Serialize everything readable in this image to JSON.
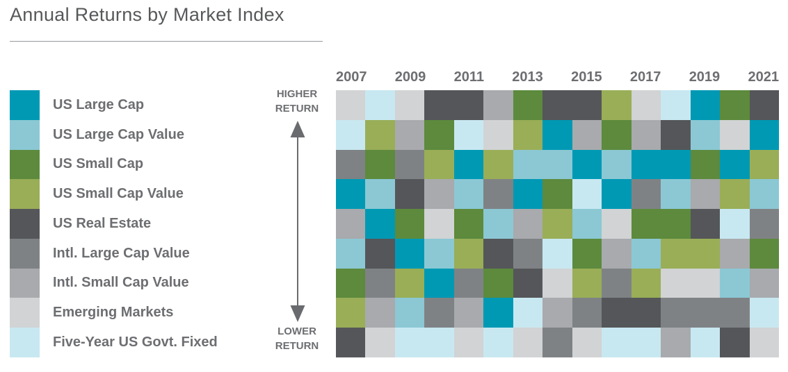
{
  "title": "Annual Returns by Market Index",
  "axis": {
    "higher": "HIGHER RETURN",
    "lower": "LOWER RETURN"
  },
  "colors": {
    "us_large_cap": "#0099B4",
    "us_large_cap_value": "#8BC8D4",
    "us_small_cap": "#5D8A3D",
    "us_small_cap_value": "#99AE57",
    "us_real_estate": "#555659",
    "intl_large_cap_value": "#7F8285",
    "intl_small_cap_value": "#A8AAAD",
    "emerging_markets": "#D1D3D4",
    "five_year_govt": "#C8E8F1",
    "text_title": "#57585A",
    "text_labels": "#6D6E71",
    "arrow": "#6A6B6E"
  },
  "legend": {
    "items": [
      {
        "key": "us_large_cap",
        "label": "US Large Cap"
      },
      {
        "key": "us_large_cap_value",
        "label": "US Large Cap Value"
      },
      {
        "key": "us_small_cap",
        "label": "US Small Cap"
      },
      {
        "key": "us_small_cap_value",
        "label": "US Small Cap Value"
      },
      {
        "key": "us_real_estate",
        "label": "US Real Estate"
      },
      {
        "key": "intl_large_cap_value",
        "label": "Intl. Large Cap Value"
      },
      {
        "key": "intl_small_cap_value",
        "label": "Intl. Small Cap Value"
      },
      {
        "key": "emerging_markets",
        "label": "Emerging Markets"
      },
      {
        "key": "five_year_govt",
        "label": "Five-Year US Govt. Fixed"
      }
    ]
  },
  "chart_data": {
    "type": "heatmap",
    "title": "Annual Returns by Market Index",
    "x": [
      2007,
      2008,
      2009,
      2010,
      2011,
      2012,
      2013,
      2014,
      2015,
      2016,
      2017,
      2018,
      2019,
      2020,
      2021
    ],
    "x_tick_labels": [
      "2007",
      "2009",
      "2011",
      "2013",
      "2015",
      "2017",
      "2019",
      "2021"
    ],
    "y_top_label": "HIGHER RETURN",
    "y_bottom_label": "LOWER RETURN",
    "rows": 9,
    "legend_position": "left",
    "rankings_by_year": [
      {
        "year": 2007,
        "ranking_high_to_low": [
          "emerging_markets",
          "five_year_govt",
          "intl_large_cap_value",
          "us_large_cap",
          "intl_small_cap_value",
          "us_large_cap_value",
          "us_small_cap",
          "us_small_cap_value",
          "us_real_estate"
        ]
      },
      {
        "year": 2008,
        "ranking_high_to_low": [
          "five_year_govt",
          "us_small_cap_value",
          "us_small_cap",
          "us_large_cap_value",
          "us_large_cap",
          "us_real_estate",
          "intl_large_cap_value",
          "intl_small_cap_value",
          "emerging_markets"
        ]
      },
      {
        "year": 2009,
        "ranking_high_to_low": [
          "emerging_markets",
          "intl_small_cap_value",
          "intl_large_cap_value",
          "us_real_estate",
          "us_small_cap",
          "us_large_cap",
          "us_small_cap_value",
          "us_large_cap_value",
          "five_year_govt"
        ]
      },
      {
        "year": 2010,
        "ranking_high_to_low": [
          "us_real_estate",
          "us_small_cap",
          "us_small_cap_value",
          "intl_small_cap_value",
          "emerging_markets",
          "us_large_cap_value",
          "us_large_cap",
          "intl_large_cap_value",
          "five_year_govt"
        ]
      },
      {
        "year": 2011,
        "ranking_high_to_low": [
          "us_real_estate",
          "five_year_govt",
          "us_large_cap",
          "us_large_cap_value",
          "us_small_cap",
          "us_small_cap_value",
          "intl_large_cap_value",
          "intl_small_cap_value",
          "emerging_markets"
        ]
      },
      {
        "year": 2012,
        "ranking_high_to_low": [
          "intl_small_cap_value",
          "emerging_markets",
          "us_small_cap_value",
          "intl_large_cap_value",
          "us_large_cap_value",
          "us_real_estate",
          "us_small_cap",
          "us_large_cap",
          "five_year_govt"
        ]
      },
      {
        "year": 2013,
        "ranking_high_to_low": [
          "us_small_cap",
          "us_small_cap_value",
          "us_large_cap_value",
          "us_large_cap",
          "intl_small_cap_value",
          "intl_large_cap_value",
          "us_real_estate",
          "five_year_govt",
          "emerging_markets"
        ]
      },
      {
        "year": 2014,
        "ranking_high_to_low": [
          "us_real_estate",
          "us_large_cap",
          "us_large_cap_value",
          "us_small_cap",
          "us_small_cap_value",
          "five_year_govt",
          "emerging_markets",
          "intl_small_cap_value",
          "intl_large_cap_value"
        ]
      },
      {
        "year": 2015,
        "ranking_high_to_low": [
          "us_real_estate",
          "intl_small_cap_value",
          "us_large_cap",
          "five_year_govt",
          "us_large_cap_value",
          "us_small_cap",
          "us_small_cap_value",
          "intl_large_cap_value",
          "emerging_markets"
        ]
      },
      {
        "year": 2016,
        "ranking_high_to_low": [
          "us_small_cap_value",
          "us_small_cap",
          "us_large_cap_value",
          "us_large_cap",
          "emerging_markets",
          "intl_small_cap_value",
          "intl_large_cap_value",
          "us_real_estate",
          "five_year_govt"
        ]
      },
      {
        "year": 2017,
        "ranking_high_to_low": [
          "emerging_markets",
          "intl_small_cap_value",
          "us_large_cap",
          "intl_large_cap_value",
          "us_small_cap",
          "us_large_cap_value",
          "us_small_cap_value",
          "us_real_estate",
          "five_year_govt"
        ]
      },
      {
        "year": 2018,
        "ranking_high_to_low": [
          "five_year_govt",
          "us_real_estate",
          "us_large_cap",
          "us_large_cap_value",
          "us_small_cap",
          "us_small_cap_value",
          "emerging_markets",
          "intl_large_cap_value",
          "intl_small_cap_value"
        ]
      },
      {
        "year": 2019,
        "ranking_high_to_low": [
          "us_large_cap",
          "us_large_cap_value",
          "us_small_cap",
          "intl_small_cap_value",
          "us_real_estate",
          "us_small_cap_value",
          "emerging_markets",
          "intl_large_cap_value",
          "five_year_govt"
        ]
      },
      {
        "year": 2020,
        "ranking_high_to_low": [
          "us_small_cap",
          "emerging_markets",
          "us_large_cap",
          "us_small_cap_value",
          "five_year_govt",
          "intl_small_cap_value",
          "us_large_cap_value",
          "intl_large_cap_value",
          "us_real_estate"
        ]
      },
      {
        "year": 2021,
        "ranking_high_to_low": [
          "us_real_estate",
          "us_large_cap",
          "us_small_cap_value",
          "us_large_cap_value",
          "intl_large_cap_value",
          "us_small_cap",
          "intl_small_cap_value",
          "five_year_govt",
          "emerging_markets"
        ]
      }
    ]
  }
}
